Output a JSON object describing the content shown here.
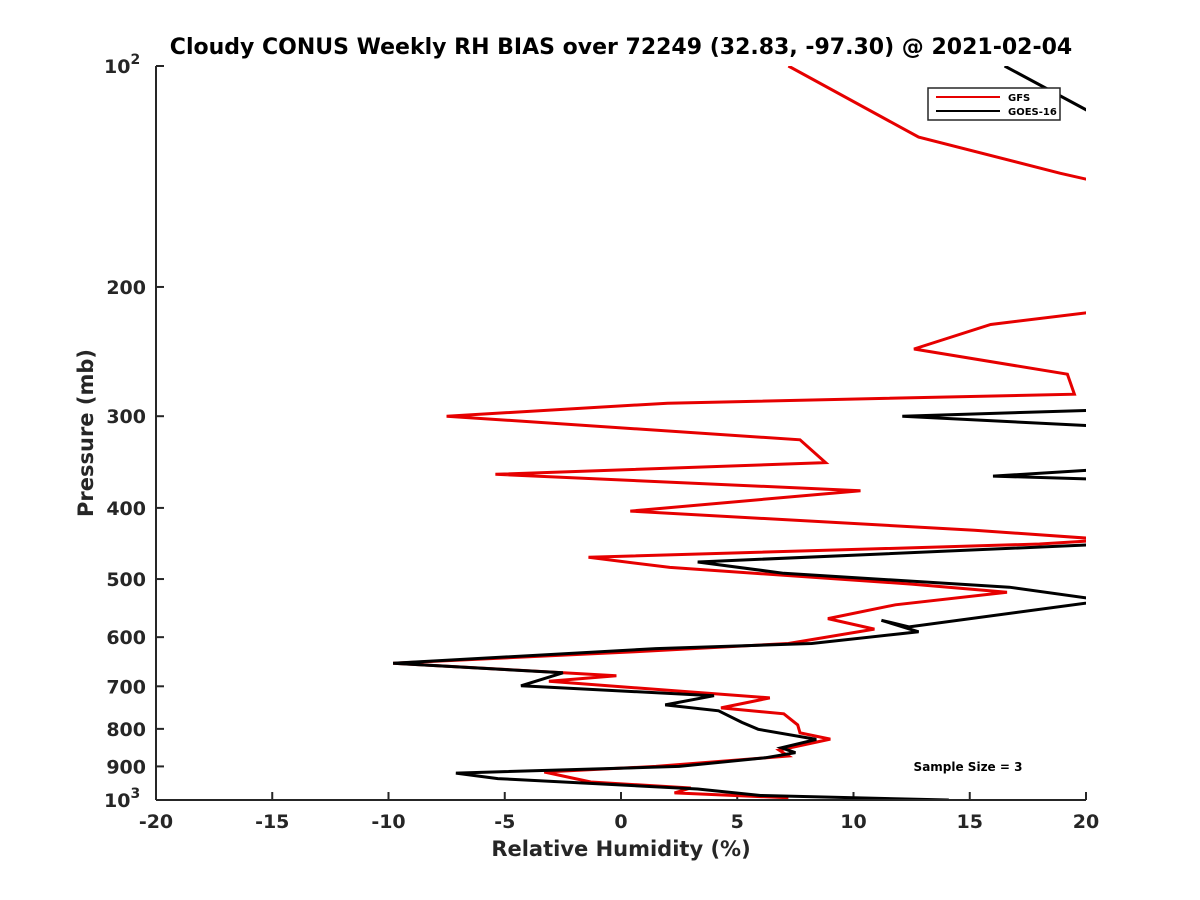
{
  "chart_data": {
    "type": "line",
    "title": "Cloudy CONUS Weekly RH BIAS over 72249 (32.83, -97.30) @ 2021-02-04",
    "xlabel": "Relative Humidity (%)",
    "ylabel": "Pressure (mb)",
    "xlim": [
      -20,
      20
    ],
    "ylim": [
      100,
      1000
    ],
    "y_scale": "log",
    "y_reversed": true,
    "x_ticks": [
      "-20",
      "-15",
      "-10",
      "-5",
      "0",
      "5",
      "10",
      "15",
      "20"
    ],
    "y_tick_labels": [
      {
        "value": 100,
        "base": "10",
        "exp": "2"
      },
      {
        "value": 200,
        "base": "200",
        "exp": ""
      },
      {
        "value": 300,
        "base": "300",
        "exp": ""
      },
      {
        "value": 400,
        "base": "400",
        "exp": ""
      },
      {
        "value": 500,
        "base": "500",
        "exp": ""
      },
      {
        "value": 600,
        "base": "600",
        "exp": ""
      },
      {
        "value": 700,
        "base": "700",
        "exp": ""
      },
      {
        "value": 800,
        "base": "800",
        "exp": ""
      },
      {
        "value": 900,
        "base": "900",
        "exp": ""
      },
      {
        "value": 1000,
        "base": "10",
        "exp": "3"
      }
    ],
    "grid": false,
    "legend_position": "top-right",
    "annotation": "Sample Size = 3",
    "series": [
      {
        "name": "GFS",
        "color": "#e60000",
        "segments": [
          [
            [
              7.2,
              100
            ],
            [
              12.8,
              125
            ],
            [
              18.9,
              140
            ],
            [
              21.0,
              145
            ]
          ],
          [
            [
              21.0,
              215
            ],
            [
              15.9,
              225
            ],
            [
              12.6,
              243
            ],
            [
              19.2,
              263
            ],
            [
              19.5,
              280
            ],
            [
              2.0,
              288
            ],
            [
              -7.5,
              300
            ],
            [
              7.7,
              323
            ],
            [
              8.8,
              347
            ],
            [
              -5.4,
              360
            ],
            [
              10.3,
              379
            ],
            [
              0.4,
              404
            ],
            [
              15.2,
              429
            ],
            [
              21.0,
              442
            ],
            [
              18.0,
              448
            ],
            [
              -1.4,
              467
            ],
            [
              2.1,
              482
            ],
            [
              12.5,
              508
            ],
            [
              16.6,
              521
            ],
            [
              11.8,
              542
            ],
            [
              8.9,
              566
            ],
            [
              10.9,
              585
            ],
            [
              7.2,
              612
            ],
            [
              0.6,
              628
            ],
            [
              -9.8,
              651
            ],
            [
              -0.2,
              677
            ],
            [
              -3.1,
              689
            ],
            [
              6.4,
              726
            ],
            [
              4.3,
              749
            ],
            [
              7.0,
              763
            ],
            [
              7.6,
              790
            ],
            [
              7.7,
              810
            ],
            [
              9.0,
              826
            ],
            [
              6.8,
              855
            ],
            [
              7.2,
              871
            ],
            [
              1.5,
              900
            ],
            [
              -3.3,
              916
            ],
            [
              -1.3,
              945
            ],
            [
              3.0,
              963
            ],
            [
              2.3,
              978
            ],
            [
              7.2,
              993
            ]
          ]
        ]
      },
      {
        "name": "GOES-16",
        "color": "#000000",
        "segments": [
          [
            [
              16.5,
              100
            ],
            [
              20.5,
              117
            ],
            [
              21.0,
              120
            ]
          ],
          [
            [
              21.0,
              294
            ],
            [
              12.1,
              300
            ],
            [
              21.0,
              310
            ]
          ],
          [
            [
              21.0,
              354
            ],
            [
              16.0,
              362
            ],
            [
              21.0,
              366
            ]
          ],
          [
            [
              21.0,
              448
            ],
            [
              3.3,
              474
            ],
            [
              7.0,
              491
            ],
            [
              16.7,
              513
            ],
            [
              20.3,
              532
            ],
            [
              21.0,
              534
            ],
            [
              12.4,
              581
            ],
            [
              11.2,
              569
            ],
            [
              12.8,
              590
            ],
            [
              8.2,
              612
            ],
            [
              1.5,
              622
            ],
            [
              -9.8,
              651
            ],
            [
              -2.5,
              671
            ],
            [
              -4.3,
              699
            ],
            [
              4.0,
              721
            ],
            [
              1.9,
              742
            ],
            [
              4.2,
              756
            ],
            [
              5.2,
              784
            ],
            [
              5.9,
              801
            ],
            [
              8.4,
              827
            ],
            [
              6.9,
              849
            ],
            [
              7.5,
              862
            ],
            [
              6.2,
              876
            ],
            [
              2.5,
              900
            ],
            [
              -7.1,
              919
            ],
            [
              -5.3,
              935
            ],
            [
              3.3,
              966
            ],
            [
              6.0,
              986
            ],
            [
              14.1,
              1000
            ]
          ]
        ]
      }
    ]
  }
}
